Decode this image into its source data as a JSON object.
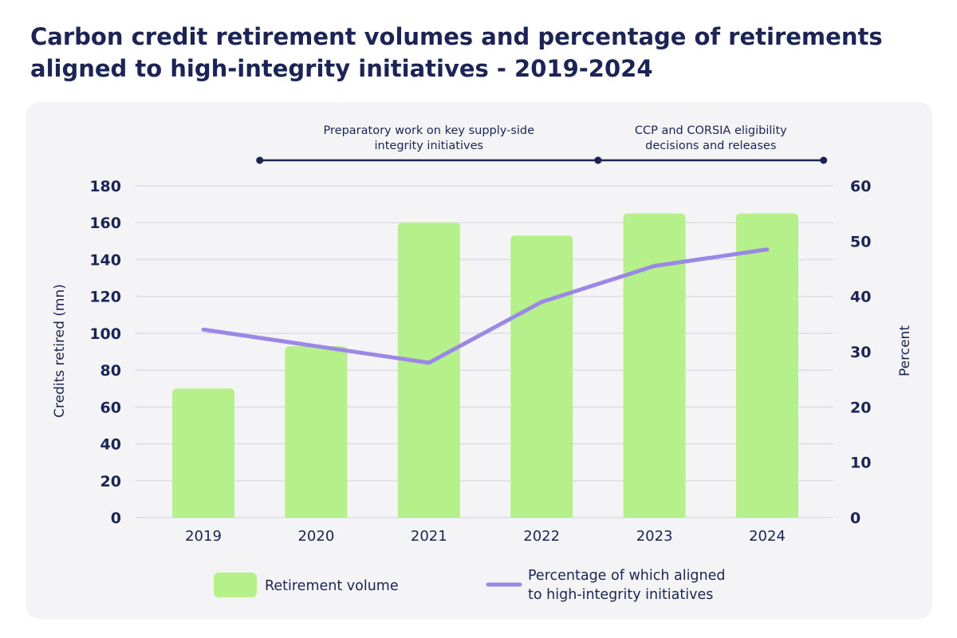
{
  "chart_data": {
    "type": "bar",
    "title": "Carbon credit retirement volumes and percentage of retirements aligned to high-integrity initiatives - 2019-2024",
    "categories": [
      "2019",
      "2020",
      "2021",
      "2022",
      "2023",
      "2024"
    ],
    "series": [
      {
        "name": "Retirement volume",
        "type": "bar",
        "axis": "left",
        "color": "#b6f08a",
        "values": [
          70,
          93,
          160,
          153,
          165,
          165
        ]
      },
      {
        "name": "Percentage of which aligned to high-integrity initiatives",
        "legend_lines": [
          "Percentage of which aligned",
          "to high-integrity initiatives"
        ],
        "type": "line",
        "axis": "right",
        "color": "#9b87e6",
        "values": [
          34,
          31,
          28,
          39,
          45.5,
          48.5
        ]
      }
    ],
    "ylabel": "Credits retired (mn)",
    "ylim": [
      0,
      180
    ],
    "yticks": [
      "0",
      "20",
      "40",
      "60",
      "80",
      "100",
      "120",
      "140",
      "160",
      "180"
    ],
    "y2label": "Percent",
    "y2lim": [
      0,
      60
    ],
    "y2ticks": [
      "0",
      "10",
      "20",
      "30",
      "40",
      "50",
      "60"
    ],
    "grid": true,
    "legend_position": "bottom",
    "annotations": [
      {
        "lines": [
          "Preparatory work on key supply-side",
          "integrity initiatives"
        ],
        "x_start": 2019.5,
        "x_end": 2022.5
      },
      {
        "lines": [
          "CCP and CORSIA eligibility",
          "decisions and releases"
        ],
        "x_start": 2022.5,
        "x_end": 2024.5
      }
    ],
    "colors": {
      "text": "#1b2454",
      "grid": "#dcdde5",
      "panel": "#f4f4f7",
      "annotation_line": "#1b2454"
    }
  }
}
